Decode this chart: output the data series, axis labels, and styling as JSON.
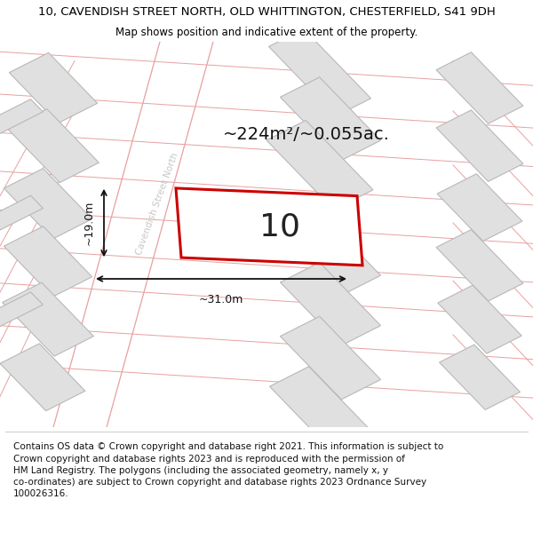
{
  "title": "10, CAVENDISH STREET NORTH, OLD WHITTINGTON, CHESTERFIELD, S41 9DH",
  "subtitle": "Map shows position and indicative extent of the property.",
  "footer": "Contains OS data © Crown copyright and database right 2021. This information is subject to\nCrown copyright and database rights 2023 and is reproduced with the permission of\nHM Land Registry. The polygons (including the associated geometry, namely x, y\nco-ordinates) are subject to Crown copyright and database rights 2023 Ordnance Survey\n100026316.",
  "area_label": "~224m²/~0.055ac.",
  "width_label": "~31.0m",
  "height_label": "~19.0m",
  "plot_number": "10",
  "street_label": "Cavendish Street North",
  "bg_color": "#ffffff",
  "building_fill": "#e0e0e0",
  "building_edge": "#b8b8b8",
  "road_line_color": "#e8a0a0",
  "highlight_color": "#cc0000",
  "highlight_fill": "#ffffff",
  "dim_line_color": "#111111",
  "title_fontsize": 9.5,
  "subtitle_fontsize": 8.5,
  "footer_fontsize": 7.5,
  "street_label_color": "#c8c8c8",
  "area_label_fontsize": 14,
  "plot_number_fontsize": 26,
  "dim_fontsize": 9
}
